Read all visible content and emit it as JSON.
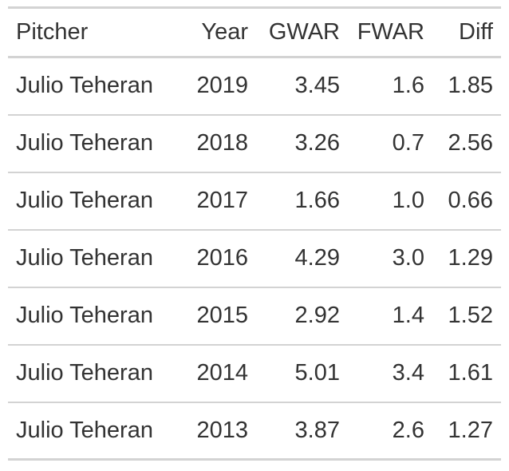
{
  "chart_data": {
    "type": "table",
    "columns": [
      "Pitcher",
      "Year",
      "GWAR",
      "FWAR",
      "Diff"
    ],
    "rows": [
      [
        "Julio Teheran",
        "2019",
        "3.45",
        "1.6",
        "1.85"
      ],
      [
        "Julio Teheran",
        "2018",
        "3.26",
        "0.7",
        "2.56"
      ],
      [
        "Julio Teheran",
        "2017",
        "1.66",
        "1.0",
        "0.66"
      ],
      [
        "Julio Teheran",
        "2016",
        "4.29",
        "3.0",
        "1.29"
      ],
      [
        "Julio Teheran",
        "2015",
        "2.92",
        "1.4",
        "1.52"
      ],
      [
        "Julio Teheran",
        "2014",
        "5.01",
        "3.4",
        "1.61"
      ],
      [
        "Julio Teheran",
        "2013",
        "3.87",
        "2.6",
        "1.27"
      ]
    ],
    "alignments": [
      "left",
      "right",
      "right",
      "right",
      "right"
    ]
  },
  "colors": {
    "text": "#333333",
    "rule": "#d3d3d3",
    "background": "#ffffff"
  }
}
